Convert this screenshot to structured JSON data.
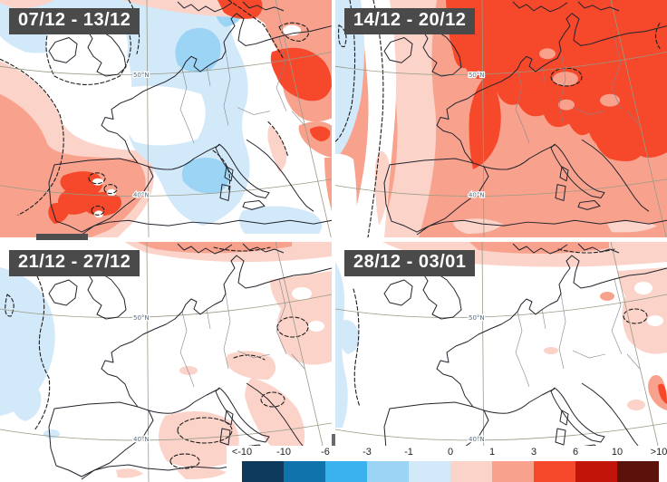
{
  "panels": [
    {
      "id": "week1",
      "label": "07/12 - 13/12"
    },
    {
      "id": "week2",
      "label": "14/12 - 20/12"
    },
    {
      "id": "week3",
      "label": "21/12 - 27/12"
    },
    {
      "id": "week4",
      "label": "28/12 - 03/01"
    }
  ],
  "graticule_labels": {
    "lat_top": "50°N",
    "lat_bottom": "40°N"
  },
  "colorbar": {
    "tick_labels": [
      "<-10",
      "-10",
      "-6",
      "-3",
      "-1",
      "0",
      "1",
      "3",
      "6",
      "10",
      ">10"
    ],
    "colors": [
      "#0e3a5e",
      "#1173ab",
      "#3ab2ef",
      "#9cd4f5",
      "#d2e9fa",
      "#fbd3c9",
      "#f8a28d",
      "#f6482a",
      "#c01508",
      "#5a120a"
    ]
  },
  "chip_style": {
    "bg": "#4a4a4a",
    "fg": "#ffffff"
  }
}
